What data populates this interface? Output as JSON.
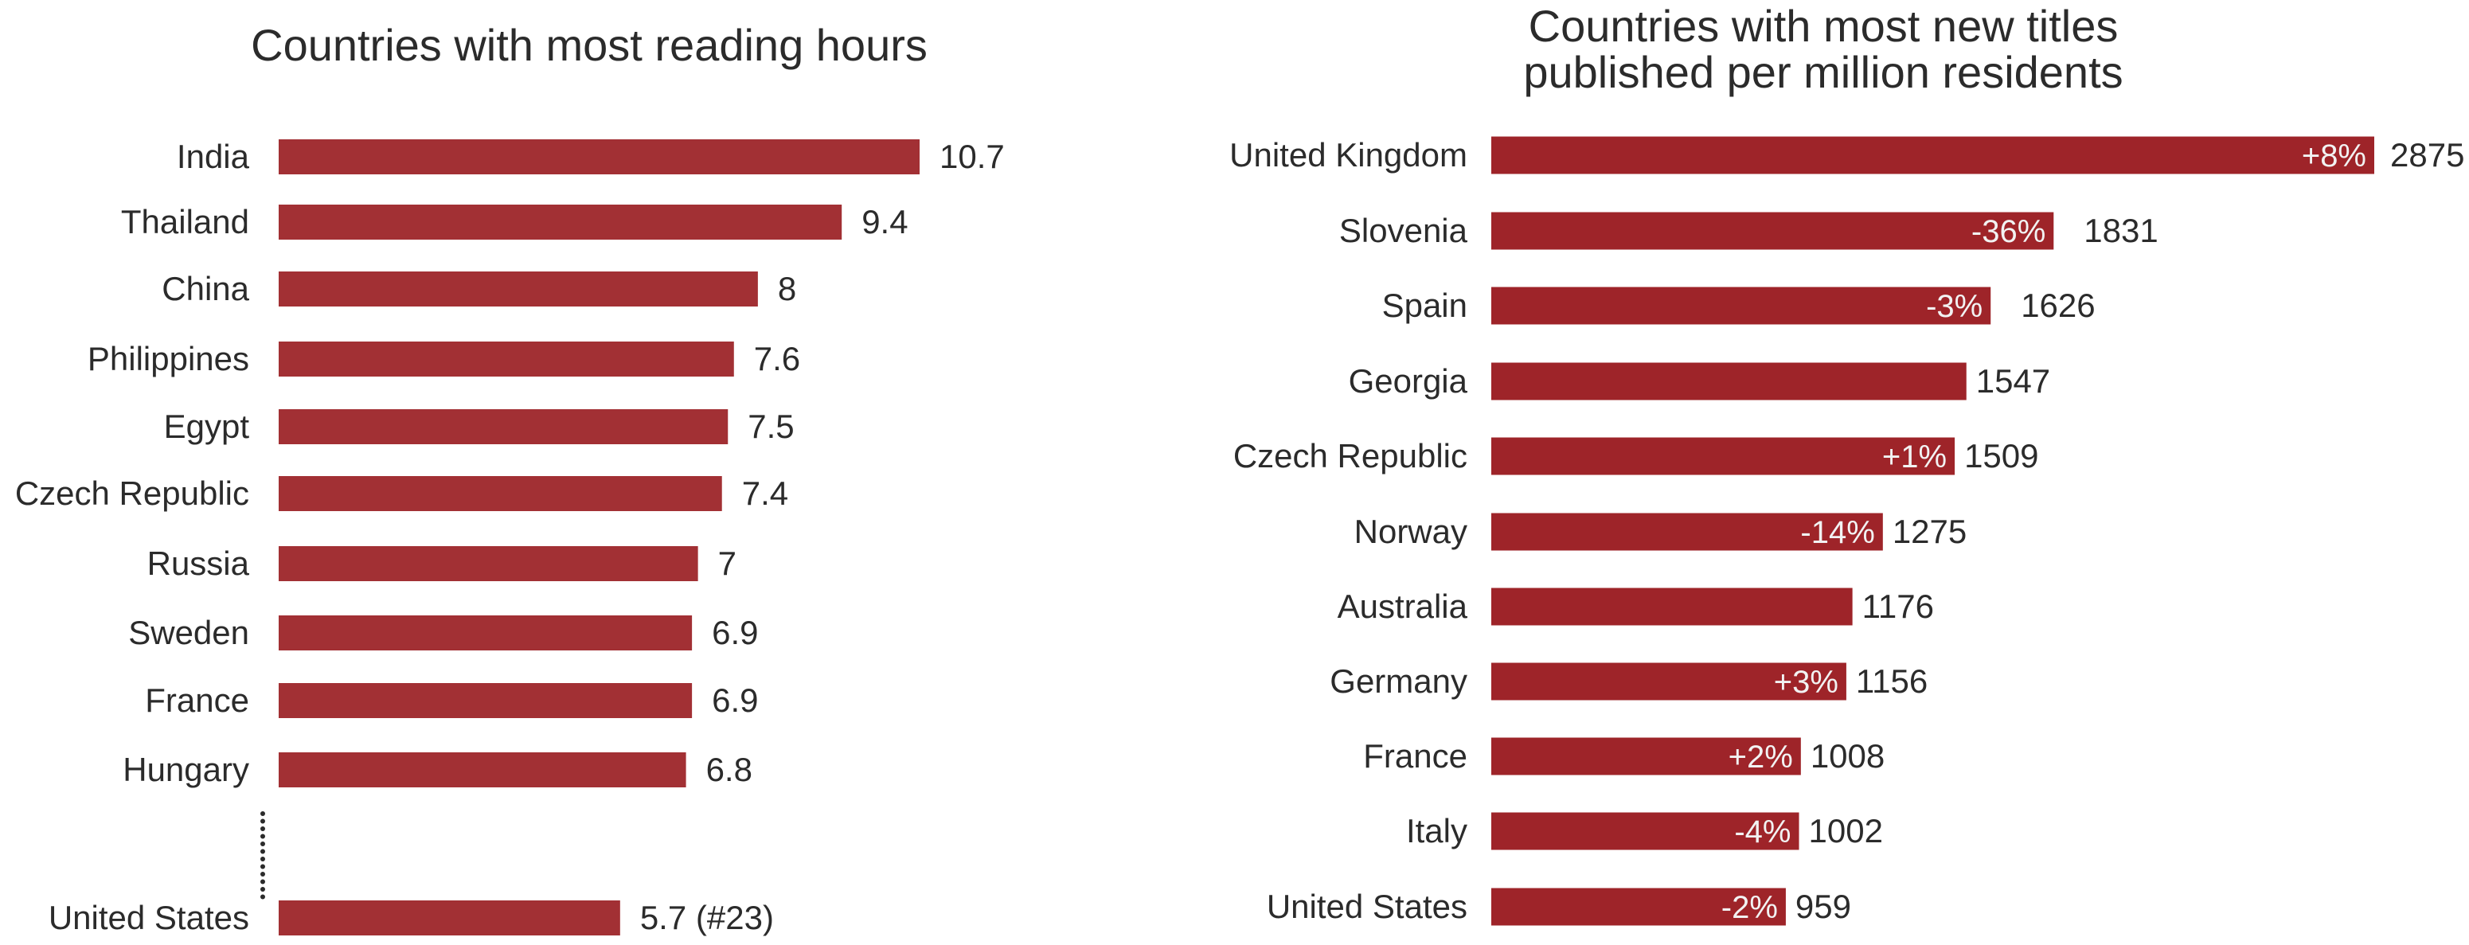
{
  "colors": {
    "bar": "#9e2429",
    "bar_alt": "#a23034",
    "text": "#2b2b2b",
    "change_text": "#f2f2f2"
  },
  "chart_data": [
    {
      "type": "bar",
      "orientation": "horizontal",
      "title": "Countries with most reading hours",
      "categories": [
        "India",
        "Thailand",
        "China",
        "Philippines",
        "Egypt",
        "Czech Republic",
        "Russia",
        "Sweden",
        "France",
        "Hungary",
        "United States"
      ],
      "values": [
        10.7,
        9.4,
        8,
        7.6,
        7.5,
        7.4,
        7,
        6.9,
        6.9,
        6.8,
        5.7
      ],
      "value_labels": [
        "10.7",
        "9.4",
        "8",
        "7.6",
        "7.5",
        "7.4",
        "7",
        "6.9",
        "6.9",
        "6.8",
        "5.7 (#23)"
      ],
      "xlim": [
        0,
        10.7
      ],
      "gap_before_last": true,
      "grid": false,
      "legend": "none"
    },
    {
      "type": "bar",
      "orientation": "horizontal",
      "title": "Countries with most new titles published per million residents",
      "title_lines": [
        "Countries with most new titles",
        "published per million residents"
      ],
      "categories": [
        "United Kingdom",
        "Slovenia",
        "Spain",
        "Georgia",
        "Czech Republic",
        "Norway",
        "Australia",
        "Germany",
        "France",
        "Italy",
        "United States"
      ],
      "values": [
        2875,
        1831,
        1626,
        1547,
        1509,
        1275,
        1176,
        1156,
        1008,
        1002,
        959
      ],
      "value_labels": [
        "2875",
        "1831",
        "1626",
        "1547",
        "1509",
        "1275",
        "1176",
        "1156",
        "1008",
        "1002",
        "959"
      ],
      "change_labels": [
        "+8%",
        "-36%",
        "-3%",
        "",
        "+1%",
        "-14%",
        "",
        "+3%",
        "+2%",
        "-4%",
        "-2%"
      ],
      "xlim": [
        0,
        2875
      ],
      "grid": false,
      "legend": "none"
    }
  ]
}
